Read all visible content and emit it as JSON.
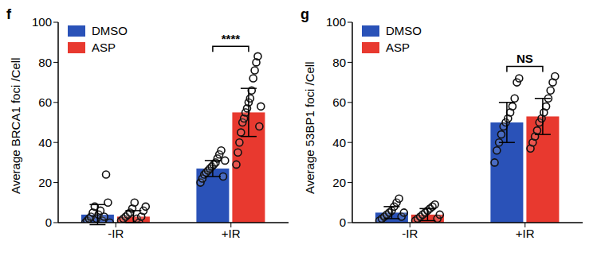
{
  "chart_data": [
    {
      "type": "bar",
      "title": "f",
      "y_label": "Average BRCA1 foci /Cell",
      "categories": [
        "-IR",
        "+IR"
      ],
      "ylim": [
        0,
        100
      ],
      "yticks": [
        0,
        20,
        40,
        60,
        80,
        100
      ],
      "legend": "upper left",
      "series": [
        {
          "name": "DMSO",
          "color": "#2a52b8",
          "values": [
            4,
            27
          ],
          "errors": [
            5,
            4
          ],
          "points": [
            [
              0,
              1,
              2,
              3,
              5,
              8,
              2,
              4,
              6,
              1,
              3,
              24,
              10,
              0
            ],
            [
              20,
              22,
              24,
              25,
              26,
              27,
              28,
              29,
              30,
              32,
              34,
              36,
              23,
              31
            ]
          ]
        },
        {
          "name": "ASP",
          "color": "#e8392f",
          "values": [
            3,
            55
          ],
          "errors": [
            3,
            12
          ],
          "points": [
            [
              1,
              2,
              3,
              4,
              5,
              7,
              10,
              2,
              0,
              3,
              6,
              8
            ],
            [
              29,
              35,
              40,
              45,
              50,
              52,
              55,
              57,
              60,
              62,
              66,
              72,
              76,
              80,
              83,
              48,
              58
            ]
          ]
        }
      ],
      "annotations": [
        {
          "text": "****",
          "category": "+IR"
        }
      ]
    },
    {
      "type": "bar",
      "title": "g",
      "y_label": "Average 53BP1 foci /Cell",
      "categories": [
        "-IR",
        "+IR"
      ],
      "ylim": [
        0,
        100
      ],
      "yticks": [
        0,
        20,
        40,
        60,
        80,
        100
      ],
      "legend": "upper left",
      "series": [
        {
          "name": "DMSO",
          "color": "#2a52b8",
          "values": [
            5,
            50
          ],
          "errors": [
            3,
            10
          ],
          "points": [
            [
              1,
              2,
              3,
              4,
              5,
              6,
              8,
              10,
              12,
              3,
              5
            ],
            [
              30,
              36,
              40,
              44,
              48,
              50,
              52,
              55,
              58,
              62,
              70,
              72
            ]
          ]
        },
        {
          "name": "ASP",
          "color": "#e8392f",
          "values": [
            4,
            53
          ],
          "errors": [
            3,
            9
          ],
          "points": [
            [
              1,
              2,
              3,
              4,
              5,
              6,
              7,
              8,
              9,
              2,
              4
            ],
            [
              37,
              40,
              43,
              46,
              50,
              52,
              55,
              58,
              62,
              66,
              70,
              73
            ]
          ]
        }
      ],
      "annotations": [
        {
          "text": "NS",
          "category": "+IR"
        }
      ]
    }
  ]
}
